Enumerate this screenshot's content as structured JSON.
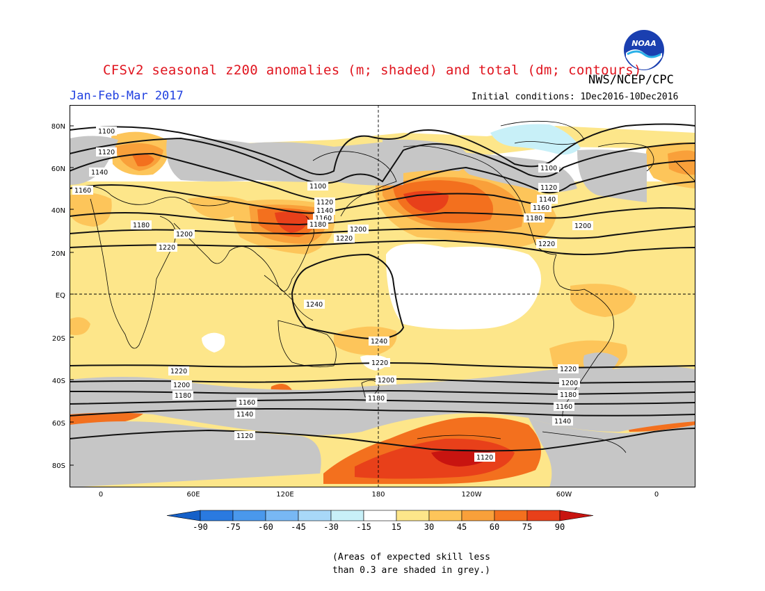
{
  "title": "CFSv2 seasonal z200 anomalies (m; shaded) and total (dm; contours)",
  "agency": "NWS/NCEP/CPC",
  "logo_text": "NOAA",
  "season": "Jan-Feb-Mar 2017",
  "initial_conditions": "Initial conditions: 1Dec2016-10Dec2016",
  "lat_labels": [
    "80N",
    "60N",
    "40N",
    "20N",
    "EQ",
    "20S",
    "40S",
    "60S",
    "80S"
  ],
  "lon_labels": [
    "0",
    "60E",
    "120E",
    "180",
    "120W",
    "60W",
    "0"
  ],
  "colorbar": {
    "ticks": [
      "-90",
      "-75",
      "-60",
      "-45",
      "-30",
      "-15",
      "15",
      "30",
      "45",
      "60",
      "75",
      "90"
    ],
    "colors": [
      "#1560c8",
      "#2a7ae0",
      "#4a98ec",
      "#78b8f4",
      "#a8d8f8",
      "#c8f0f8",
      "#ffffff",
      "#fde68a",
      "#fdc55a",
      "#f9a03a",
      "#f3701e",
      "#e8401a",
      "#c81410"
    ]
  },
  "contour_labels": [
    "1100",
    "1120",
    "1140",
    "1160",
    "1180",
    "1200",
    "1220",
    "1240"
  ],
  "note": [
    "(Areas of expected skill less",
    "than 0.3 are shaded in grey.)"
  ]
}
